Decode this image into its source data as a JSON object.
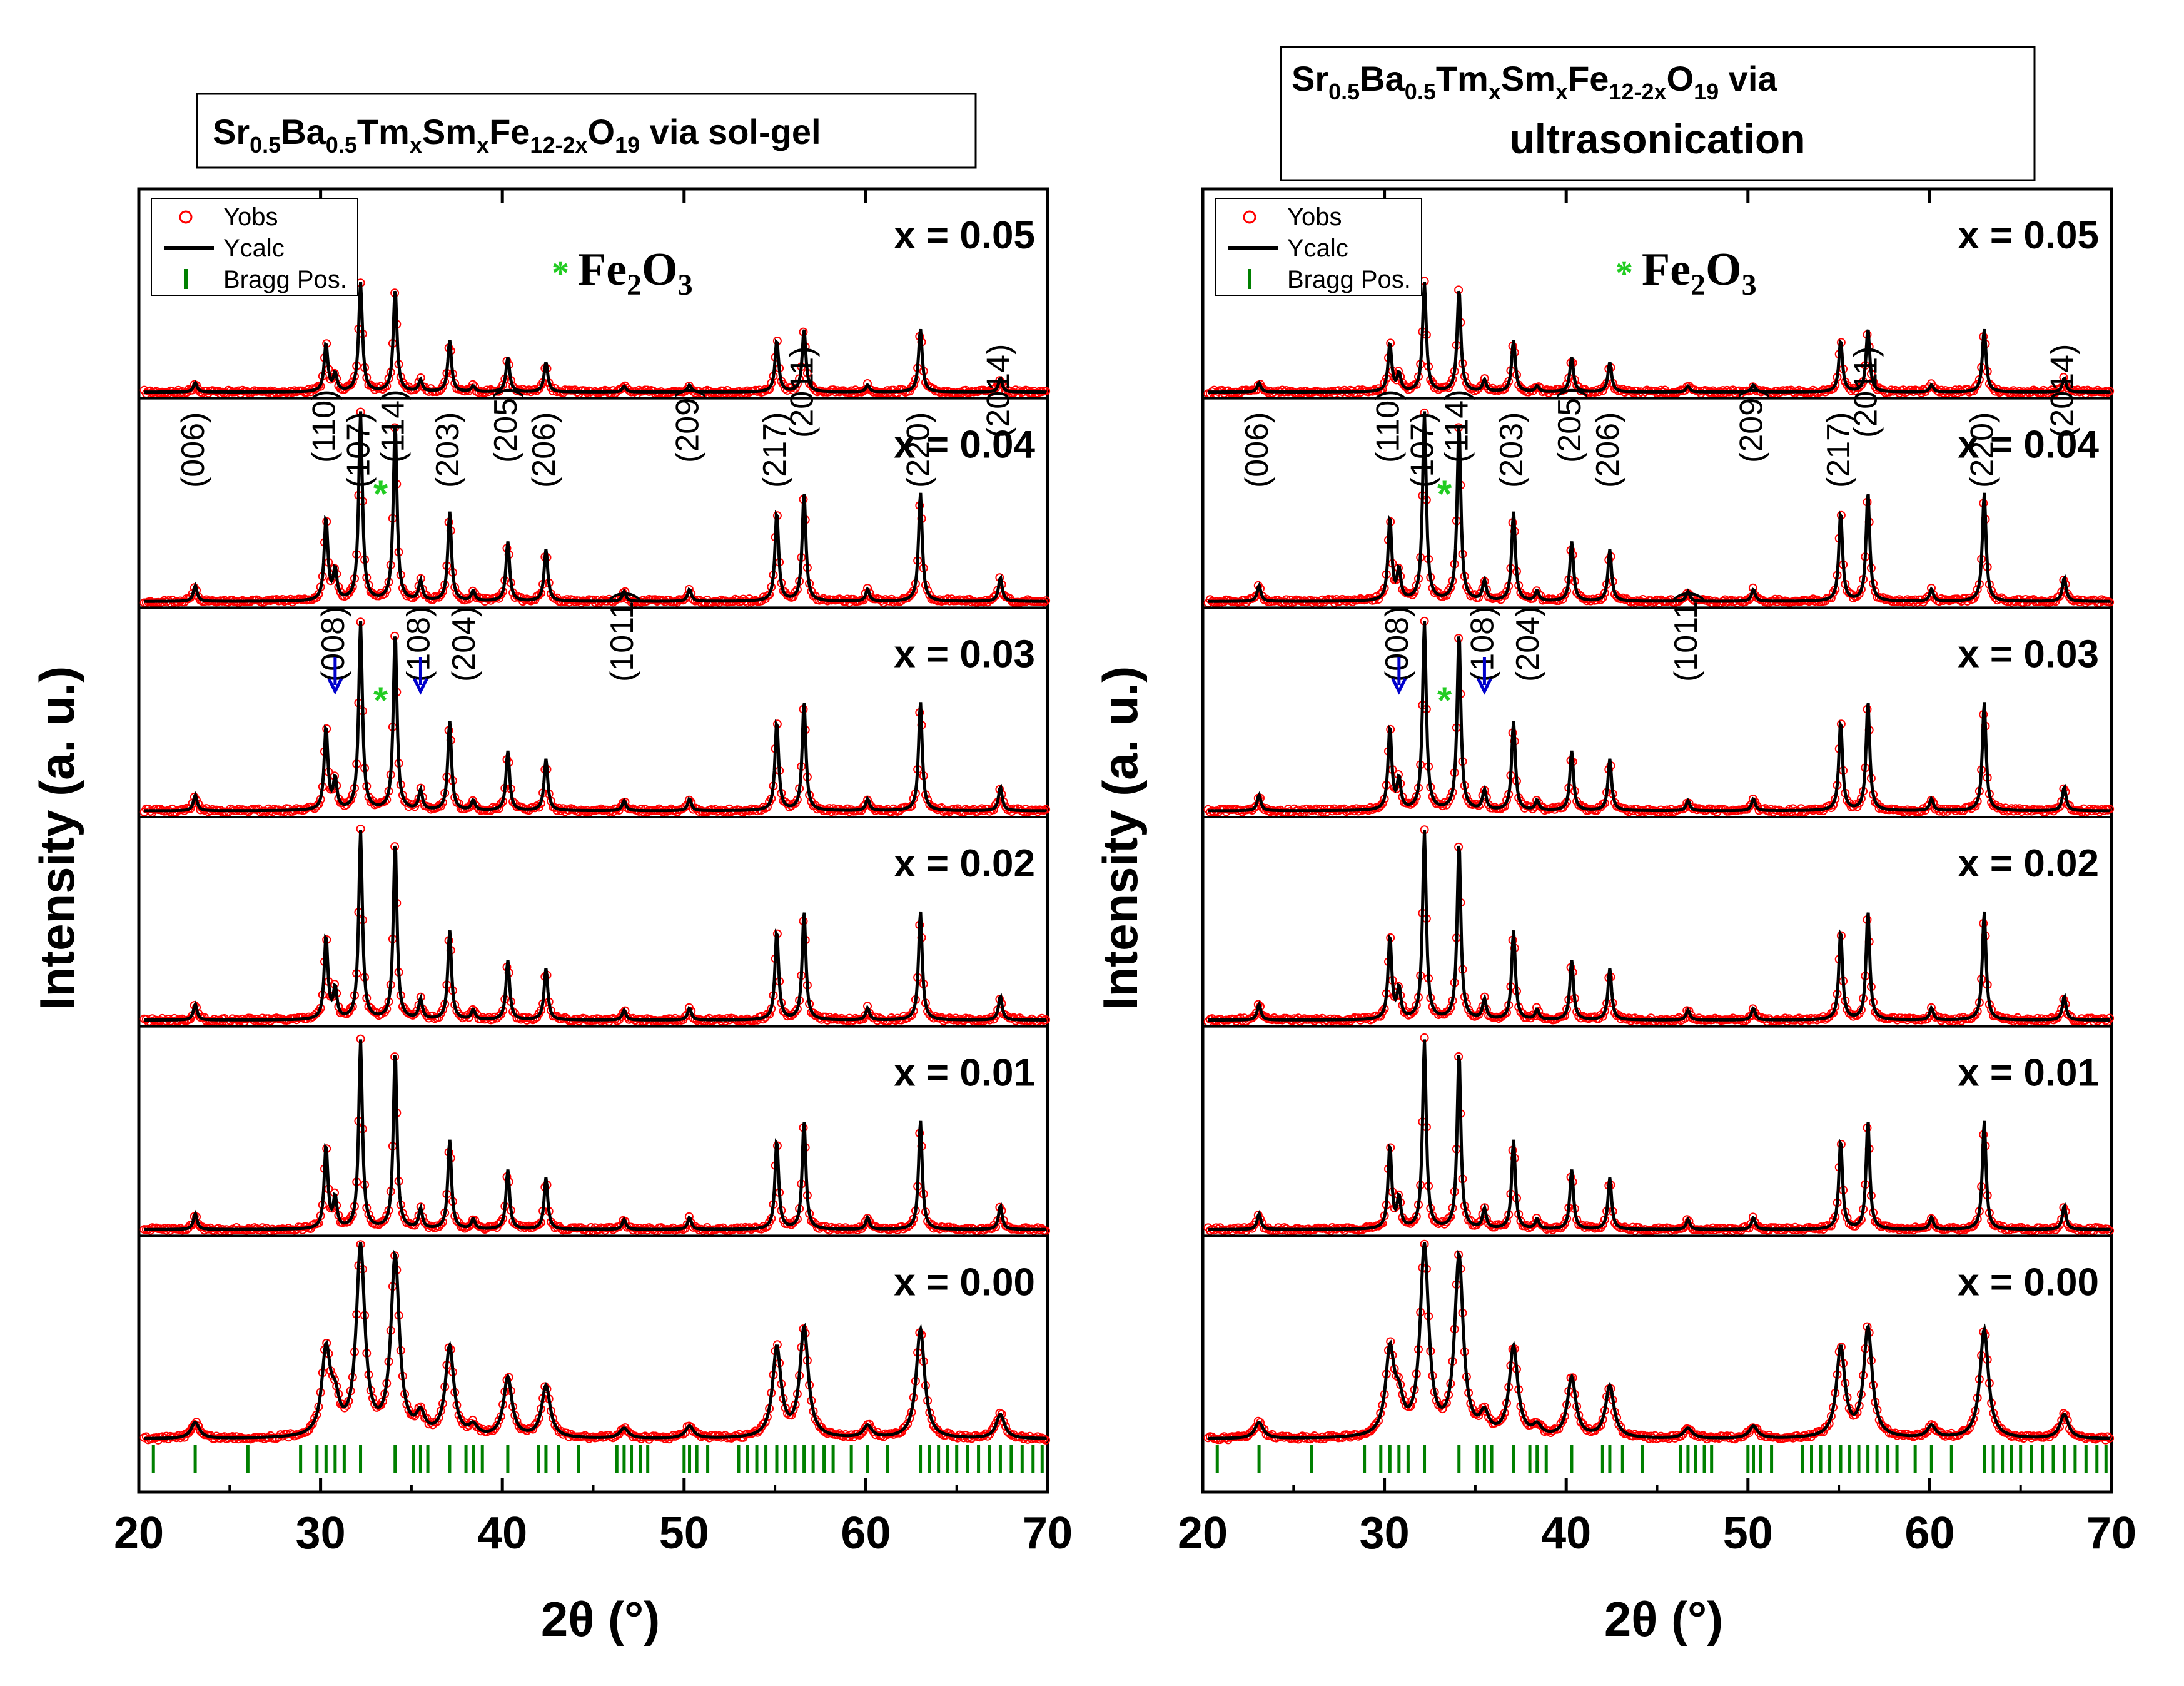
{
  "colors": {
    "obs": "#ff0000",
    "calc": "#000000",
    "bragg": "#008000",
    "arrow": "#0000cc",
    "star": "#22cc22"
  },
  "figure": {
    "ylabel": "Intensity (a. u.)",
    "xlabel": "2θ (°)"
  },
  "legend": {
    "obs": "Yobs",
    "calc": "Ycalc",
    "bragg": "Bragg Pos."
  },
  "impurity": {
    "symbol": "*",
    "base": "Fe",
    "sub2": "2",
    "o": "O",
    "sub3": "3"
  },
  "panels": [
    {
      "id": "solgel",
      "title_line1": "via sol-gel",
      "title_line2": "",
      "twoline": false
    },
    {
      "id": "ultra",
      "title_line1": "via",
      "title_line2": "ultrasonication",
      "twoline": true
    }
  ],
  "formula": {
    "p1": "Sr",
    "s1": "0.5",
    "p2": "Ba",
    "s2": "0.5",
    "p3": "Tm",
    "s3": "x",
    "p4": "Sm",
    "s4": "x",
    "p5": "Fe",
    "s5": "12-2x",
    "p6": "O",
    "s6": "19"
  },
  "chart_data": [
    {
      "type": "line",
      "title": "Sr0.5Ba0.5TmxSmxFe12-2xO19 via sol-gel",
      "xlabel": "2θ (°)",
      "ylabel": "Intensity (a. u.)",
      "xlim": [
        20,
        70
      ],
      "xticks": [
        20,
        30,
        40,
        50,
        60,
        70
      ],
      "series_labels": [
        "x = 0.05",
        "x = 0.04",
        "x = 0.03",
        "x = 0.02",
        "x = 0.01",
        "x = 0.00"
      ],
      "legend": [
        "Yobs",
        "Ycalc",
        "Bragg Pos."
      ],
      "reflections_top": [
        {
          "hkl": "(006)",
          "two_theta": 23.1
        },
        {
          "hkl": "(110)",
          "two_theta": 30.3
        },
        {
          "hkl": "(107)",
          "two_theta": 32.2
        },
        {
          "hkl": "(114)",
          "two_theta": 34.1
        },
        {
          "hkl": "(203)",
          "two_theta": 37.1
        },
        {
          "hkl": "(205)",
          "two_theta": 40.3
        },
        {
          "hkl": "(206)",
          "two_theta": 42.4
        },
        {
          "hkl": "(209)",
          "two_theta": 50.3
        },
        {
          "hkl": "(217)",
          "two_theta": 55.1
        },
        {
          "hkl": "(2011)",
          "two_theta": 56.6
        },
        {
          "hkl": "(220)",
          "two_theta": 63.0
        },
        {
          "hkl": "(2014)",
          "two_theta": 67.4
        }
      ],
      "reflections_second": [
        {
          "hkl": "(008)",
          "two_theta": 30.8
        },
        {
          "hkl": "(108)",
          "two_theta": 35.5
        },
        {
          "hkl": "(204)",
          "two_theta": 38.0
        },
        {
          "hkl": "(1011)",
          "two_theta": 46.7
        }
      ],
      "peaks": [
        {
          "pos": 23.1,
          "rel": 0.08
        },
        {
          "pos": 30.3,
          "rel": 0.42
        },
        {
          "pos": 30.8,
          "rel": 0.15
        },
        {
          "pos": 32.2,
          "rel": 0.95
        },
        {
          "pos": 34.1,
          "rel": 0.9
        },
        {
          "pos": 35.5,
          "rel": 0.1
        },
        {
          "pos": 37.1,
          "rel": 0.45
        },
        {
          "pos": 38.4,
          "rel": 0.05
        },
        {
          "pos": 40.3,
          "rel": 0.3
        },
        {
          "pos": 42.4,
          "rel": 0.26
        },
        {
          "pos": 46.7,
          "rel": 0.05
        },
        {
          "pos": 50.3,
          "rel": 0.06
        },
        {
          "pos": 55.1,
          "rel": 0.45
        },
        {
          "pos": 56.6,
          "rel": 0.55
        },
        {
          "pos": 60.1,
          "rel": 0.06
        },
        {
          "pos": 63.0,
          "rel": 0.55
        },
        {
          "pos": 67.4,
          "rel": 0.12
        }
      ],
      "bragg_positions": [
        20.8,
        23.1,
        26.0,
        28.9,
        29.8,
        30.3,
        30.8,
        31.3,
        32.2,
        34.1,
        35.1,
        35.5,
        35.9,
        37.1,
        38.0,
        38.4,
        38.9,
        40.3,
        42.0,
        42.4,
        43.1,
        44.2,
        46.3,
        46.7,
        47.1,
        47.6,
        48.0,
        50.0,
        50.3,
        50.7,
        51.3,
        53.0,
        53.5,
        54.0,
        54.5,
        55.1,
        55.6,
        56.1,
        56.6,
        57.1,
        57.7,
        58.2,
        59.2,
        60.1,
        61.2,
        63.0,
        63.5,
        64.0,
        64.5,
        65.0,
        65.6,
        66.2,
        66.8,
        67.4,
        68.0,
        68.6,
        69.2,
        69.7
      ]
    },
    {
      "type": "line",
      "title": "Sr0.5Ba0.5TmxSmxFe12-2xO19 via ultrasonication",
      "xlabel": "2θ (°)",
      "ylabel": "Intensity (a. u.)",
      "xlim": [
        20,
        70
      ],
      "xticks": [
        20,
        30,
        40,
        50,
        60,
        70
      ],
      "series_labels": [
        "x = 0.05",
        "x = 0.04",
        "x = 0.03",
        "x = 0.02",
        "x = 0.01",
        "x = 0.00"
      ],
      "legend": [
        "Yobs",
        "Ycalc",
        "Bragg Pos."
      ],
      "reflections_top": [
        {
          "hkl": "(006)",
          "two_theta": 23.1
        },
        {
          "hkl": "(110)",
          "two_theta": 30.3
        },
        {
          "hkl": "(107)",
          "two_theta": 32.2
        },
        {
          "hkl": "(114)",
          "two_theta": 34.1
        },
        {
          "hkl": "(203)",
          "two_theta": 37.1
        },
        {
          "hkl": "(205)",
          "two_theta": 40.3
        },
        {
          "hkl": "(206)",
          "two_theta": 42.4
        },
        {
          "hkl": "(209)",
          "two_theta": 50.3
        },
        {
          "hkl": "(217)",
          "two_theta": 55.1
        },
        {
          "hkl": "(2011)",
          "two_theta": 56.6
        },
        {
          "hkl": "(220)",
          "two_theta": 63.0
        },
        {
          "hkl": "(2014)",
          "two_theta": 67.4
        }
      ],
      "reflections_second": [
        {
          "hkl": "(008)",
          "two_theta": 30.8
        },
        {
          "hkl": "(108)",
          "two_theta": 35.5
        },
        {
          "hkl": "(204)",
          "two_theta": 38.0
        },
        {
          "hkl": "(1011)",
          "two_theta": 46.7
        }
      ],
      "peaks": [
        {
          "pos": 23.1,
          "rel": 0.08
        },
        {
          "pos": 30.3,
          "rel": 0.42
        },
        {
          "pos": 30.8,
          "rel": 0.15
        },
        {
          "pos": 32.2,
          "rel": 0.95
        },
        {
          "pos": 34.1,
          "rel": 0.9
        },
        {
          "pos": 35.5,
          "rel": 0.1
        },
        {
          "pos": 37.1,
          "rel": 0.45
        },
        {
          "pos": 38.4,
          "rel": 0.05
        },
        {
          "pos": 40.3,
          "rel": 0.3
        },
        {
          "pos": 42.4,
          "rel": 0.26
        },
        {
          "pos": 46.7,
          "rel": 0.05
        },
        {
          "pos": 50.3,
          "rel": 0.06
        },
        {
          "pos": 55.1,
          "rel": 0.45
        },
        {
          "pos": 56.6,
          "rel": 0.55
        },
        {
          "pos": 60.1,
          "rel": 0.06
        },
        {
          "pos": 63.0,
          "rel": 0.55
        },
        {
          "pos": 67.4,
          "rel": 0.12
        }
      ],
      "bragg_positions": [
        20.8,
        23.1,
        26.0,
        28.9,
        29.8,
        30.3,
        30.8,
        31.3,
        32.2,
        34.1,
        35.1,
        35.5,
        35.9,
        37.1,
        38.0,
        38.4,
        38.9,
        40.3,
        42.0,
        42.4,
        43.1,
        44.2,
        46.3,
        46.7,
        47.1,
        47.6,
        48.0,
        50.0,
        50.3,
        50.7,
        51.3,
        53.0,
        53.5,
        54.0,
        54.5,
        55.1,
        55.6,
        56.1,
        56.6,
        57.1,
        57.7,
        58.2,
        59.2,
        60.1,
        61.2,
        63.0,
        63.5,
        64.0,
        64.5,
        65.0,
        65.6,
        66.2,
        66.8,
        67.4,
        68.0,
        68.6,
        69.2,
        69.7
      ]
    }
  ]
}
